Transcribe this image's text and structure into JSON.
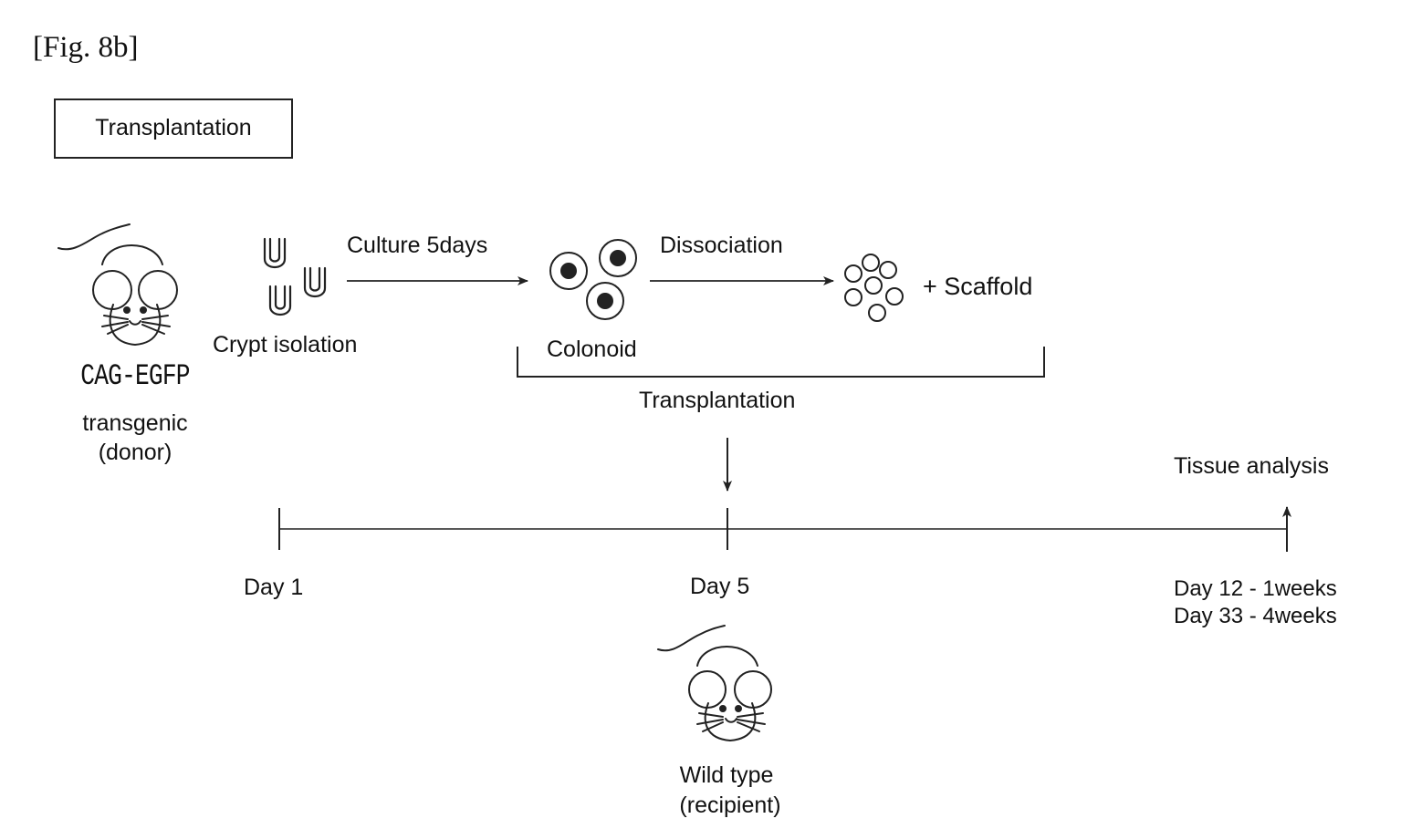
{
  "figure_label": "[Fig. 8b]",
  "box_title": "Transplantation",
  "donor": {
    "strain": "CAG-EGFP",
    "line1": "transgenic",
    "line2": "(donor)"
  },
  "steps": {
    "crypt_isolation": "Crypt isolation",
    "culture": "Culture 5days",
    "colonoid": "Colonoid",
    "dissociation": "Dissociation",
    "scaffold": "+ Scaffold",
    "transplantation": "Transplantation"
  },
  "timeline": {
    "day1": "Day 1",
    "day5": "Day 5",
    "end_line1": "Day 12 - 1weeks",
    "end_line2": "Day 33 - 4weeks",
    "analysis": "Tissue analysis"
  },
  "recipient": {
    "line1": "Wild type",
    "line2": "(recipient)"
  }
}
